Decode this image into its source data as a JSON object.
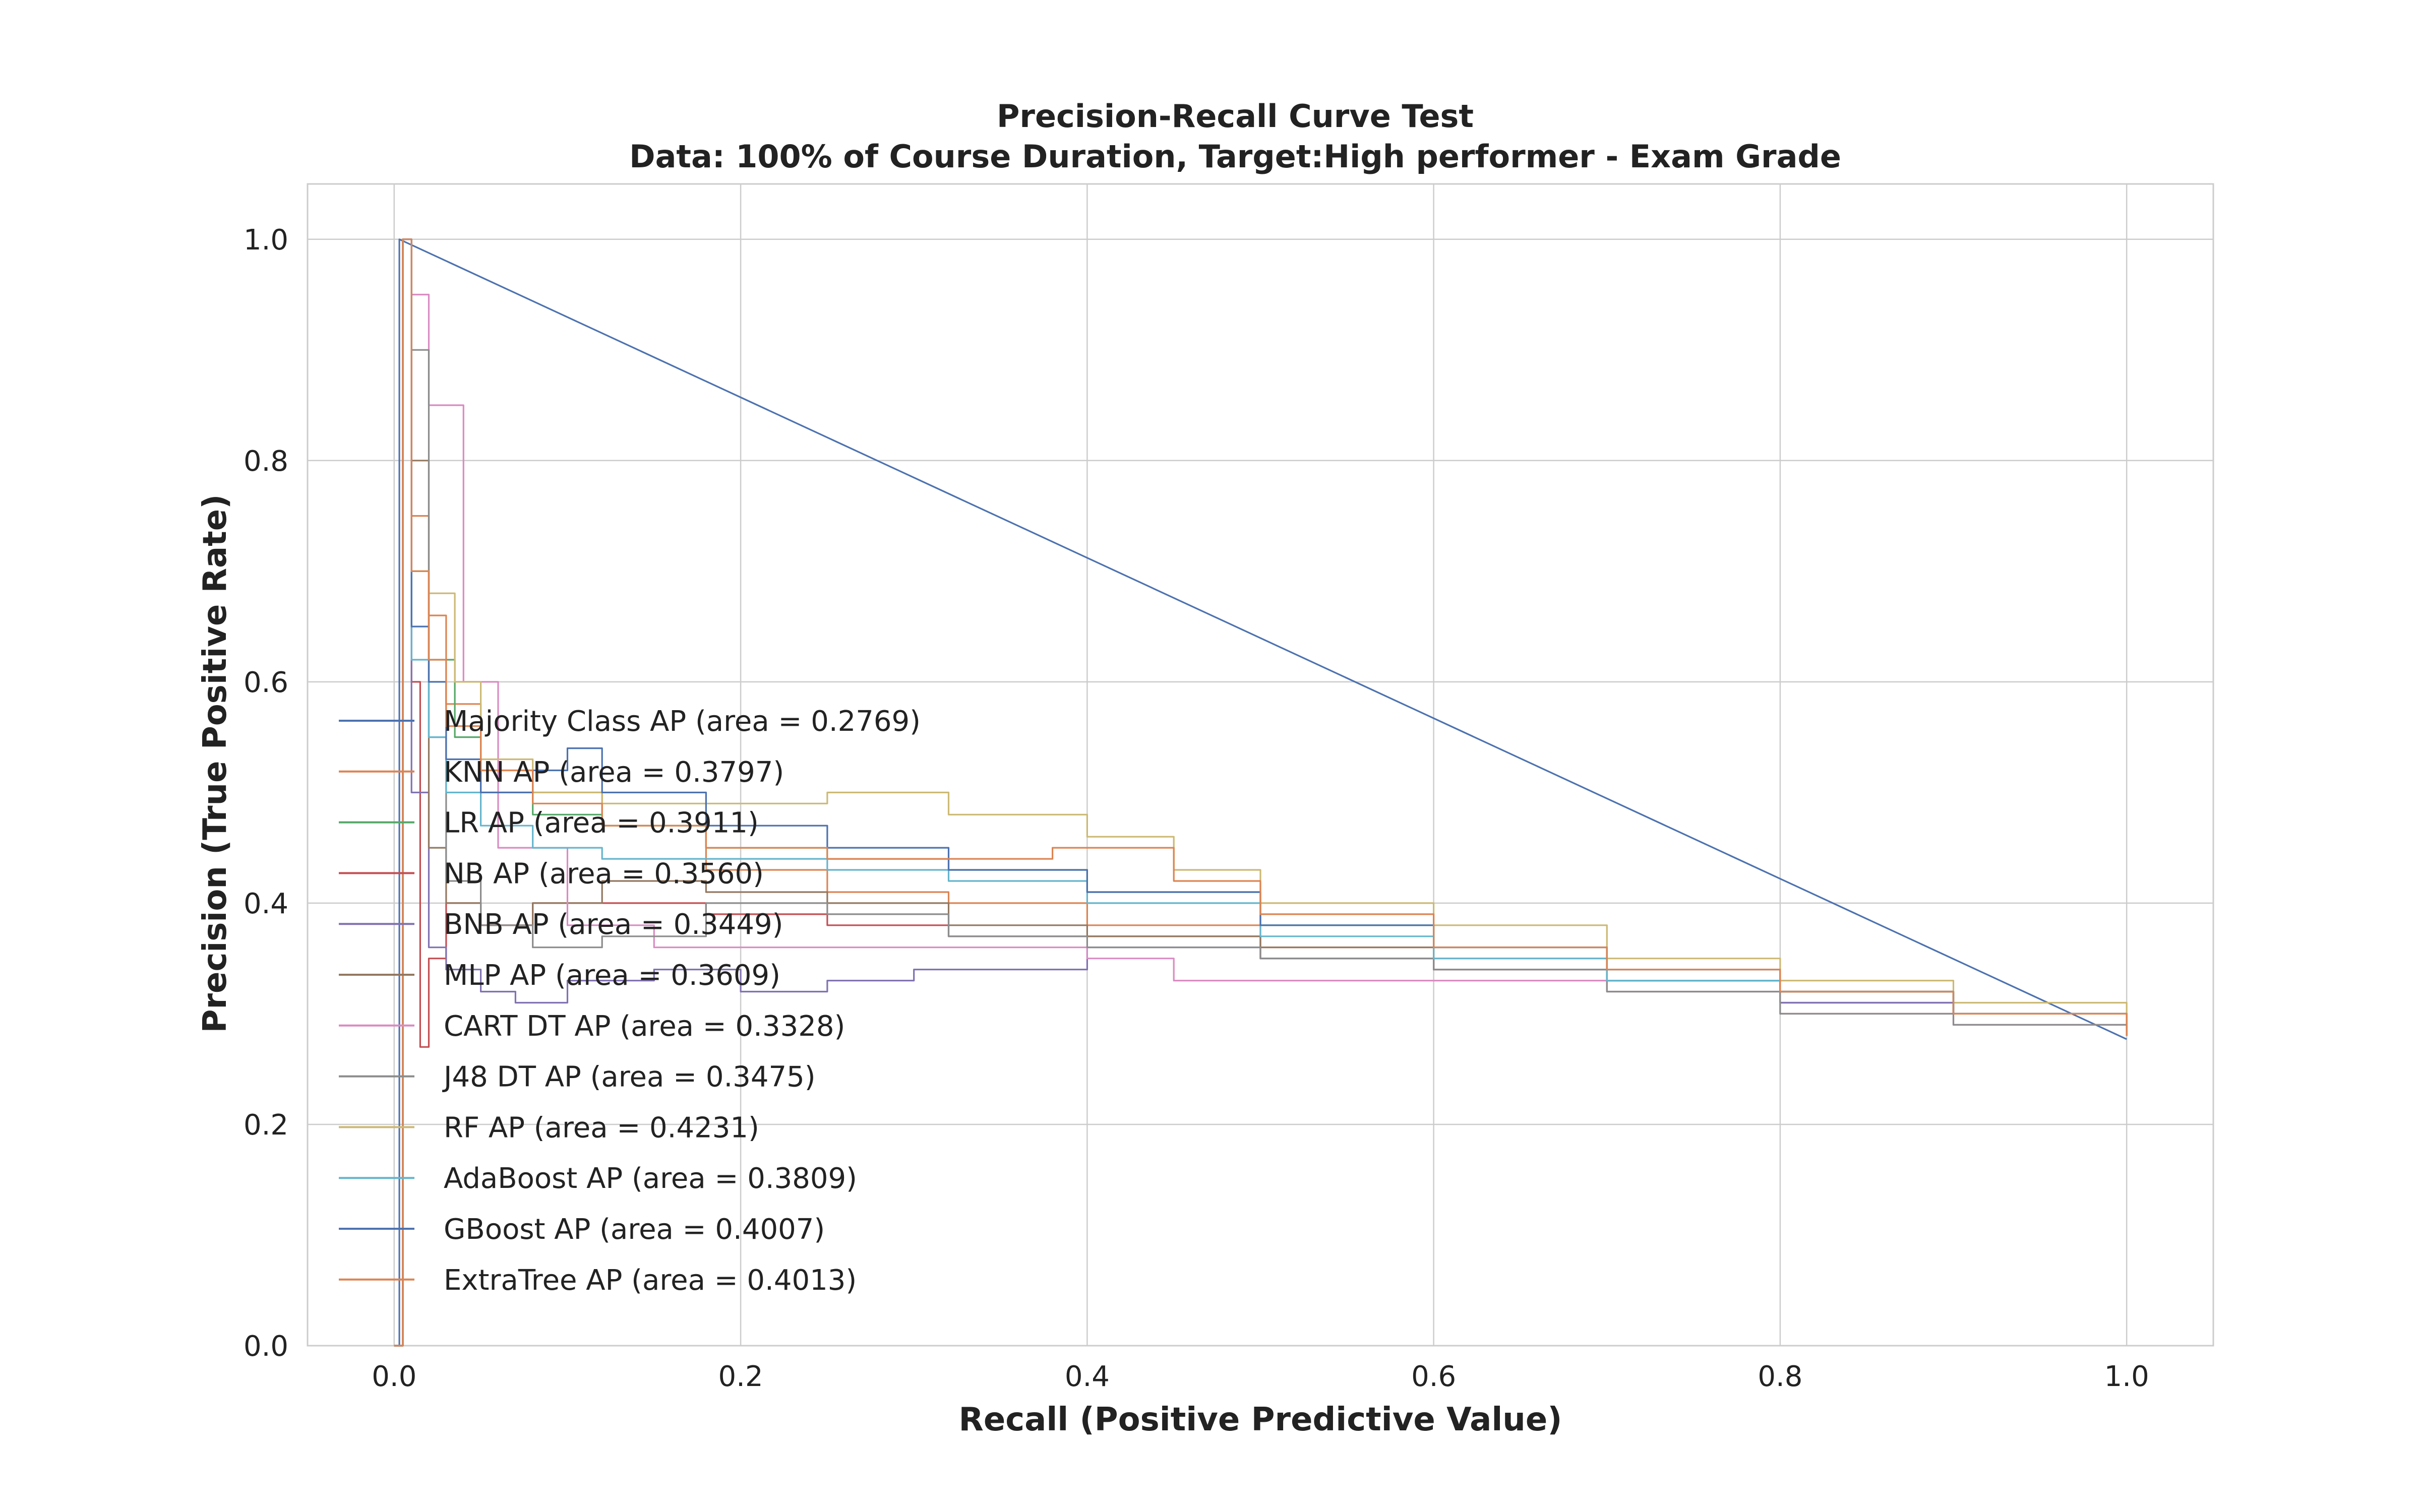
{
  "chart_data": {
    "type": "line",
    "title": "Precision-Recall Curve Test",
    "subtitle": "Data: 100% of Course Duration, Target:High performer - Exam Grade",
    "xlabel": "Recall (Positive Predictive Value)",
    "ylabel": "Precision (True Positive Rate)",
    "xlim": [
      -0.05,
      1.05
    ],
    "ylim": [
      0.0,
      1.05
    ],
    "xticks": [
      "0.0",
      "0.2",
      "0.4",
      "0.6",
      "0.8",
      "1.0"
    ],
    "yticks": [
      "0.0",
      "0.2",
      "0.4",
      "0.6",
      "0.8",
      "1.0"
    ],
    "grid": true,
    "legend_position": "center-left",
    "series": [
      {
        "name": "Majority Class AP (area = 0.2769)",
        "color": "#4c72b0",
        "x": [
          0.0,
          0.003,
          0.003,
          1.0
        ],
        "y": [
          0.0,
          0.0,
          1.0,
          0.277
        ]
      },
      {
        "name": "KNN AP (area = 0.3797)",
        "color": "#dd8452",
        "x": [
          0.0,
          0.005,
          0.01,
          0.02,
          0.03,
          0.05,
          0.08,
          0.12,
          0.18,
          0.25,
          0.32,
          0.4,
          0.5,
          0.6,
          0.7,
          0.8,
          0.9,
          1.0
        ],
        "y": [
          0.0,
          1.0,
          0.75,
          0.66,
          0.58,
          0.52,
          0.5,
          0.47,
          0.43,
          0.41,
          0.4,
          0.38,
          0.36,
          0.35,
          0.33,
          0.32,
          0.3,
          0.28
        ]
      },
      {
        "name": "LR AP (area = 0.3911)",
        "color": "#55a868",
        "x": [
          0.0,
          0.005,
          0.01,
          0.02,
          0.035,
          0.05,
          0.08,
          0.12,
          0.18,
          0.25,
          0.32,
          0.4,
          0.5,
          0.6,
          0.7,
          0.8,
          0.9,
          1.0
        ],
        "y": [
          0.0,
          1.0,
          0.7,
          0.62,
          0.55,
          0.5,
          0.48,
          0.47,
          0.45,
          0.44,
          0.43,
          0.41,
          0.38,
          0.36,
          0.34,
          0.32,
          0.3,
          0.28
        ]
      },
      {
        "name": "NB AP (area = 0.3560)",
        "color": "#c44e52",
        "x": [
          0.0,
          0.005,
          0.01,
          0.015,
          0.02,
          0.03,
          0.05,
          0.08,
          0.12,
          0.18,
          0.25,
          0.32,
          0.4,
          0.5,
          0.6,
          0.7,
          0.8,
          0.9,
          1.0
        ],
        "y": [
          0.0,
          1.0,
          0.6,
          0.27,
          0.35,
          0.4,
          0.38,
          0.4,
          0.4,
          0.39,
          0.38,
          0.37,
          0.37,
          0.35,
          0.34,
          0.33,
          0.31,
          0.3,
          0.28
        ]
      },
      {
        "name": "BNB AP (area = 0.3449)",
        "color": "#8172b2",
        "x": [
          0.0,
          0.005,
          0.01,
          0.02,
          0.03,
          0.05,
          0.07,
          0.1,
          0.15,
          0.2,
          0.25,
          0.3,
          0.4,
          0.5,
          0.6,
          0.7,
          0.8,
          0.9,
          1.0
        ],
        "y": [
          0.0,
          1.0,
          0.5,
          0.36,
          0.34,
          0.32,
          0.31,
          0.33,
          0.34,
          0.32,
          0.33,
          0.34,
          0.36,
          0.35,
          0.34,
          0.33,
          0.31,
          0.3,
          0.28
        ]
      },
      {
        "name": "MLP AP (area = 0.3609)",
        "color": "#937860",
        "x": [
          0.0,
          0.005,
          0.01,
          0.02,
          0.03,
          0.05,
          0.08,
          0.12,
          0.18,
          0.25,
          0.32,
          0.4,
          0.5,
          0.6,
          0.7,
          0.8,
          0.9,
          1.0
        ],
        "y": [
          0.0,
          1.0,
          0.8,
          0.45,
          0.4,
          0.38,
          0.4,
          0.42,
          0.41,
          0.4,
          0.38,
          0.37,
          0.36,
          0.34,
          0.33,
          0.32,
          0.3,
          0.28
        ]
      },
      {
        "name": "CART DT AP (area = 0.3328)",
        "color": "#da8bc3",
        "x": [
          0.0,
          0.005,
          0.01,
          0.02,
          0.04,
          0.06,
          0.1,
          0.15,
          0.2,
          0.3,
          0.4,
          0.45,
          0.6,
          0.7,
          0.8,
          0.9,
          1.0
        ],
        "y": [
          0.0,
          1.0,
          0.95,
          0.85,
          0.6,
          0.45,
          0.38,
          0.36,
          0.36,
          0.36,
          0.35,
          0.33,
          0.33,
          0.32,
          0.3,
          0.29,
          0.28
        ]
      },
      {
        "name": "J48 DT AP (area = 0.3475)",
        "color": "#8c8c8c",
        "x": [
          0.0,
          0.005,
          0.01,
          0.02,
          0.03,
          0.05,
          0.08,
          0.12,
          0.18,
          0.25,
          0.32,
          0.4,
          0.5,
          0.6,
          0.7,
          0.8,
          0.9,
          1.0
        ],
        "y": [
          0.0,
          1.0,
          0.9,
          0.55,
          0.42,
          0.38,
          0.36,
          0.37,
          0.4,
          0.39,
          0.37,
          0.36,
          0.35,
          0.34,
          0.32,
          0.3,
          0.29,
          0.28
        ]
      },
      {
        "name": "RF AP (area = 0.4231)",
        "color": "#ccb974",
        "x": [
          0.0,
          0.005,
          0.01,
          0.02,
          0.035,
          0.05,
          0.08,
          0.12,
          0.18,
          0.25,
          0.32,
          0.4,
          0.45,
          0.5,
          0.6,
          0.7,
          0.8,
          0.9,
          1.0
        ],
        "y": [
          0.0,
          1.0,
          0.7,
          0.68,
          0.6,
          0.53,
          0.5,
          0.49,
          0.49,
          0.5,
          0.48,
          0.46,
          0.43,
          0.4,
          0.38,
          0.35,
          0.33,
          0.31,
          0.28
        ]
      },
      {
        "name": "AdaBoost AP (area = 0.3809)",
        "color": "#64b5cd",
        "x": [
          0.0,
          0.005,
          0.01,
          0.02,
          0.03,
          0.05,
          0.08,
          0.12,
          0.18,
          0.25,
          0.32,
          0.4,
          0.5,
          0.6,
          0.7,
          0.8,
          0.9,
          1.0
        ],
        "y": [
          0.0,
          1.0,
          0.62,
          0.55,
          0.5,
          0.47,
          0.45,
          0.44,
          0.44,
          0.43,
          0.42,
          0.4,
          0.37,
          0.35,
          0.33,
          0.32,
          0.3,
          0.28
        ]
      },
      {
        "name": "GBoost AP (area = 0.4007)",
        "color": "#4c72b0",
        "x": [
          0.0,
          0.005,
          0.01,
          0.02,
          0.03,
          0.05,
          0.08,
          0.1,
          0.12,
          0.18,
          0.25,
          0.32,
          0.4,
          0.5,
          0.6,
          0.7,
          0.8,
          0.9,
          1.0
        ],
        "y": [
          0.0,
          1.0,
          0.65,
          0.6,
          0.53,
          0.5,
          0.52,
          0.54,
          0.5,
          0.47,
          0.45,
          0.43,
          0.41,
          0.38,
          0.36,
          0.34,
          0.32,
          0.3,
          0.28
        ]
      },
      {
        "name": "ExtraTree AP (area = 0.4013)",
        "color": "#dd8452",
        "x": [
          0.0,
          0.005,
          0.01,
          0.02,
          0.03,
          0.05,
          0.08,
          0.12,
          0.18,
          0.25,
          0.32,
          0.38,
          0.45,
          0.5,
          0.6,
          0.7,
          0.8,
          0.9,
          1.0
        ],
        "y": [
          0.0,
          1.0,
          0.7,
          0.62,
          0.56,
          0.52,
          0.49,
          0.47,
          0.45,
          0.44,
          0.44,
          0.45,
          0.42,
          0.39,
          0.36,
          0.34,
          0.32,
          0.3,
          0.28
        ]
      }
    ]
  }
}
